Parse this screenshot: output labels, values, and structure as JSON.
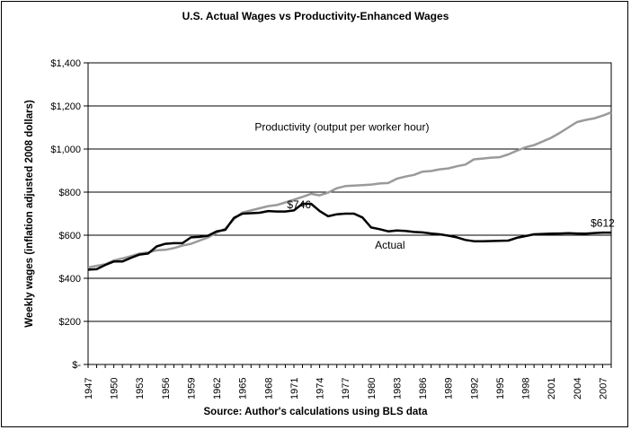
{
  "chart_data": {
    "type": "line",
    "title": "U.S. Actual Wages vs Productivity-Enhanced Wages",
    "xlabel": "Source: Author's calculations using BLS data",
    "ylabel": "Weekly wages (inflation adjusted 2008 dollars)",
    "ylim": [
      0,
      1400
    ],
    "xlim": [
      1947,
      2008
    ],
    "yticks": [
      0,
      200,
      400,
      600,
      800,
      1000,
      1200,
      1400
    ],
    "ytick_labels": [
      "$-",
      "$200",
      "$400",
      "$600",
      "$800",
      "$1,000",
      "$1,200",
      "$1,400"
    ],
    "xticks": [
      1947,
      1950,
      1953,
      1956,
      1959,
      1962,
      1965,
      1968,
      1971,
      1974,
      1977,
      1980,
      1983,
      1986,
      1989,
      1992,
      1995,
      1998,
      2001,
      2004,
      2007
    ],
    "xtick_labels": [
      "1947",
      "1950",
      "1953",
      "1956",
      "1959",
      "1962",
      "1965",
      "1968",
      "1971",
      "1974",
      "1977",
      "1980",
      "1983",
      "1986",
      "1989",
      "1992",
      "1995",
      "1998",
      "2001",
      "2004",
      "2007"
    ],
    "grid": "horizontal",
    "colors": {
      "actual": "#000000",
      "productivity": "#9a9a9a"
    },
    "series": [
      {
        "name": "Productivity (output per worker hour)",
        "x": [
          1947,
          1948,
          1949,
          1950,
          1951,
          1952,
          1953,
          1954,
          1955,
          1956,
          1957,
          1958,
          1959,
          1960,
          1961,
          1962,
          1963,
          1964,
          1965,
          1966,
          1967,
          1968,
          1969,
          1970,
          1971,
          1972,
          1973,
          1974,
          1975,
          1976,
          1977,
          1978,
          1979,
          1980,
          1981,
          1982,
          1983,
          1984,
          1985,
          1986,
          1987,
          1988,
          1989,
          1990,
          1991,
          1992,
          1993,
          1994,
          1995,
          1996,
          1997,
          1998,
          1999,
          2000,
          2001,
          2002,
          2003,
          2004,
          2005,
          2006,
          2007,
          2008
        ],
        "y": [
          450,
          458,
          465,
          483,
          492,
          503,
          515,
          520,
          530,
          532,
          540,
          552,
          560,
          575,
          590,
          612,
          630,
          675,
          705,
          715,
          725,
          735,
          740,
          752,
          765,
          778,
          792,
          785,
          798,
          818,
          828,
          830,
          832,
          835,
          840,
          842,
          862,
          872,
          880,
          895,
          898,
          906,
          910,
          920,
          928,
          952,
          956,
          960,
          962,
          975,
          992,
          1008,
          1018,
          1035,
          1052,
          1075,
          1100,
          1125,
          1135,
          1142,
          1155,
          1170
        ]
      },
      {
        "name": "Actual",
        "x": [
          1947,
          1948,
          1949,
          1950,
          1951,
          1952,
          1953,
          1954,
          1955,
          1956,
          1957,
          1958,
          1959,
          1960,
          1961,
          1962,
          1963,
          1964,
          1965,
          1966,
          1967,
          1968,
          1969,
          1970,
          1971,
          1972,
          1973,
          1974,
          1975,
          1976,
          1977,
          1978,
          1979,
          1980,
          1981,
          1982,
          1983,
          1984,
          1985,
          1986,
          1987,
          1988,
          1989,
          1990,
          1991,
          1992,
          1993,
          1994,
          1995,
          1996,
          1997,
          1998,
          1999,
          2000,
          2001,
          2002,
          2003,
          2004,
          2005,
          2006,
          2007,
          2008
        ],
        "y": [
          440,
          442,
          462,
          478,
          478,
          495,
          510,
          515,
          548,
          560,
          563,
          563,
          590,
          592,
          598,
          618,
          625,
          680,
          700,
          702,
          704,
          712,
          710,
          710,
          715,
          746,
          746,
          712,
          688,
          697,
          700,
          700,
          682,
          636,
          628,
          618,
          622,
          620,
          615,
          613,
          608,
          604,
          598,
          590,
          578,
          572,
          572,
          573,
          574,
          575,
          588,
          596,
          604,
          606,
          607,
          608,
          609,
          608,
          607,
          610,
          612,
          612
        ]
      }
    ],
    "annotations": [
      {
        "text": "Productivity (output per worker hour)",
        "x": 1976.6,
        "y": 1085
      },
      {
        "text": "$746",
        "x": 1971.6,
        "y": 724
      },
      {
        "text": "Actual",
        "x": 1982.2,
        "y": 537
      },
      {
        "text": "$612",
        "x": 2007.0,
        "y": 640
      }
    ]
  }
}
